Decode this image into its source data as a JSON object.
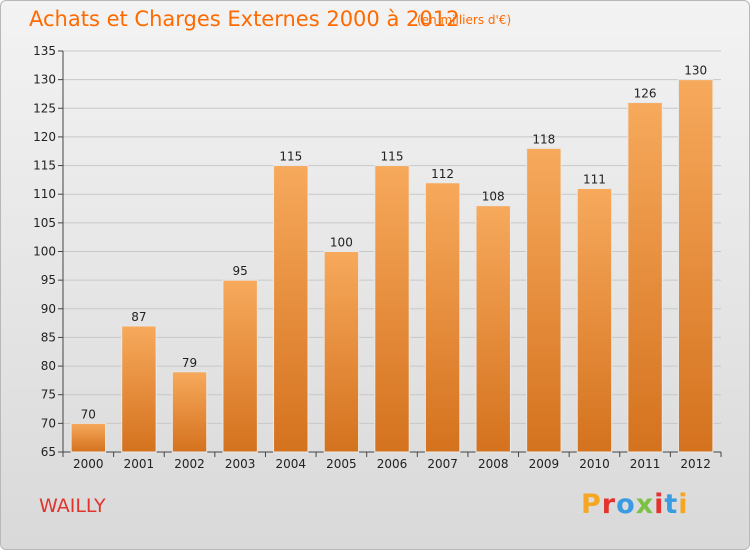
{
  "header": {
    "title": "Achats et Charges Externes 2000 à 2012",
    "subtitle": "(en milliers d'€)"
  },
  "footer": {
    "commune": "WAILLY",
    "logo_text": "Proxiti",
    "logo_colors": [
      "#f5a623",
      "#e2332e",
      "#3b9be0",
      "#7cc242",
      "#e2332e",
      "#3b9be0",
      "#f5a623"
    ]
  },
  "colors": {
    "bar_light": "#f7a95c",
    "bar_dark": "#d4721e",
    "accent": "#ff6a00"
  },
  "chart_data": {
    "type": "bar",
    "categories": [
      "2000",
      "2001",
      "2002",
      "2003",
      "2004",
      "2005",
      "2006",
      "2007",
      "2008",
      "2009",
      "2010",
      "2011",
      "2012"
    ],
    "values": [
      70,
      87,
      79,
      95,
      115,
      100,
      115,
      112,
      108,
      118,
      111,
      126,
      130
    ],
    "ylim": [
      65,
      135
    ],
    "yticks": [
      65,
      70,
      75,
      80,
      85,
      90,
      95,
      100,
      105,
      110,
      115,
      120,
      125,
      130,
      135
    ],
    "grid": true,
    "legend": "none"
  }
}
